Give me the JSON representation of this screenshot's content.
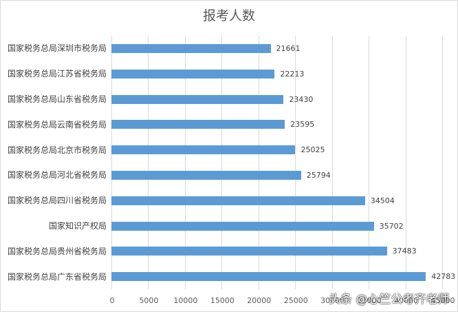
{
  "chart_data": {
    "type": "bar",
    "orientation": "horizontal",
    "title": "报考人数",
    "xlabel": "",
    "ylabel": "",
    "xlim": [
      0,
      45000
    ],
    "grid": true,
    "legend": null,
    "bar_color": "#5b9bd5",
    "categories": [
      "国家税务总局深圳市税务局",
      "国家税务总局江苏省税务局",
      "国家税务总局山东省税务局",
      "国家税务总局云南省税务局",
      "国家税务总局北京市税务局",
      "国家税务总局河北省税务局",
      "国家税务总局四川省税务局",
      "国家知识产权局",
      "国家税务总局贵州省税务局",
      "国家税务总局广东省税务局"
    ],
    "values": [
      21661,
      22213,
      23430,
      23595,
      25025,
      25794,
      34504,
      35702,
      37483,
      42783
    ],
    "x_ticks": [
      "0",
      "5000",
      "10000",
      "15000",
      "20000",
      "25000",
      "30000",
      "35000",
      "40000",
      "45000"
    ]
  },
  "watermark": "头条 @心竺公考齐老师"
}
